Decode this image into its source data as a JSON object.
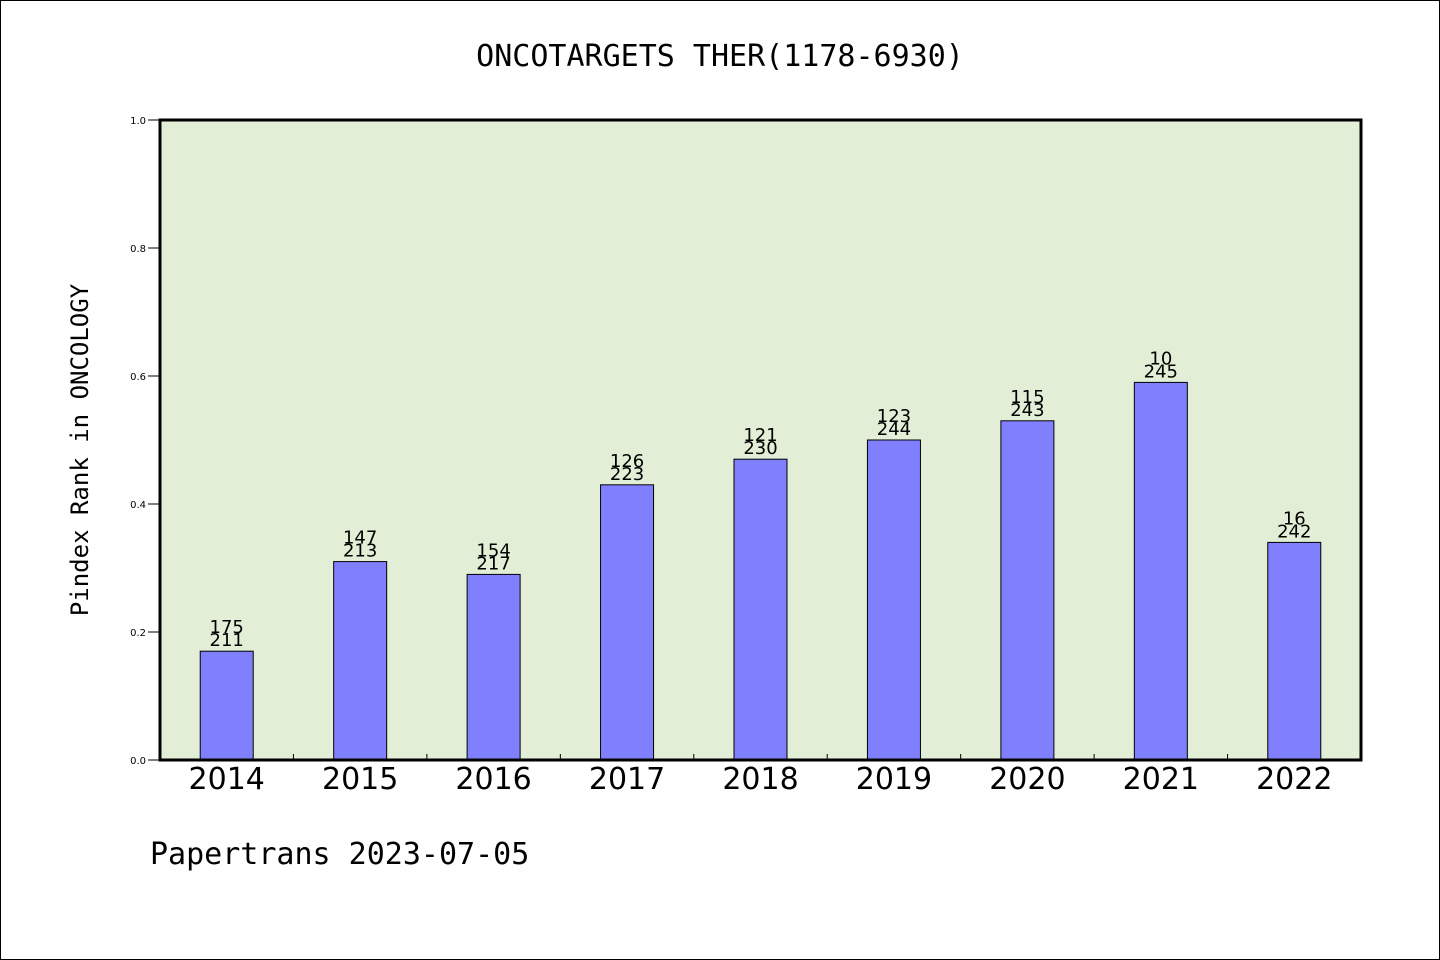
{
  "chart_data": {
    "type": "bar",
    "title": "ONCOTARGETS THER(1178-6930)",
    "ylabel": "Pindex Rank in ONCOLOGY",
    "xlabel": "",
    "categories": [
      "2014",
      "2015",
      "2016",
      "2017",
      "2018",
      "2019",
      "2020",
      "2021",
      "2022"
    ],
    "values": [
      0.17,
      0.31,
      0.29,
      0.43,
      0.47,
      0.5,
      0.53,
      0.59,
      0.34
    ],
    "label_top": [
      "175",
      "147",
      "154",
      "126",
      "121",
      "123",
      "115",
      "10",
      "16"
    ],
    "label_bottom": [
      "211",
      "213",
      "217",
      "223",
      "230",
      "244",
      "243",
      "245",
      "242"
    ],
    "ylim": [
      0,
      1.0
    ],
    "yticks": [
      "0.0",
      "0.2",
      "0.4",
      "0.6",
      "0.8",
      "1.0"
    ],
    "grid": false,
    "legend": "none",
    "colors": {
      "bar": "#8080ff",
      "plot_bg": "#e2efd6",
      "axis": "#000000"
    }
  },
  "footer": {
    "text": "Papertrans 2023-07-05"
  }
}
